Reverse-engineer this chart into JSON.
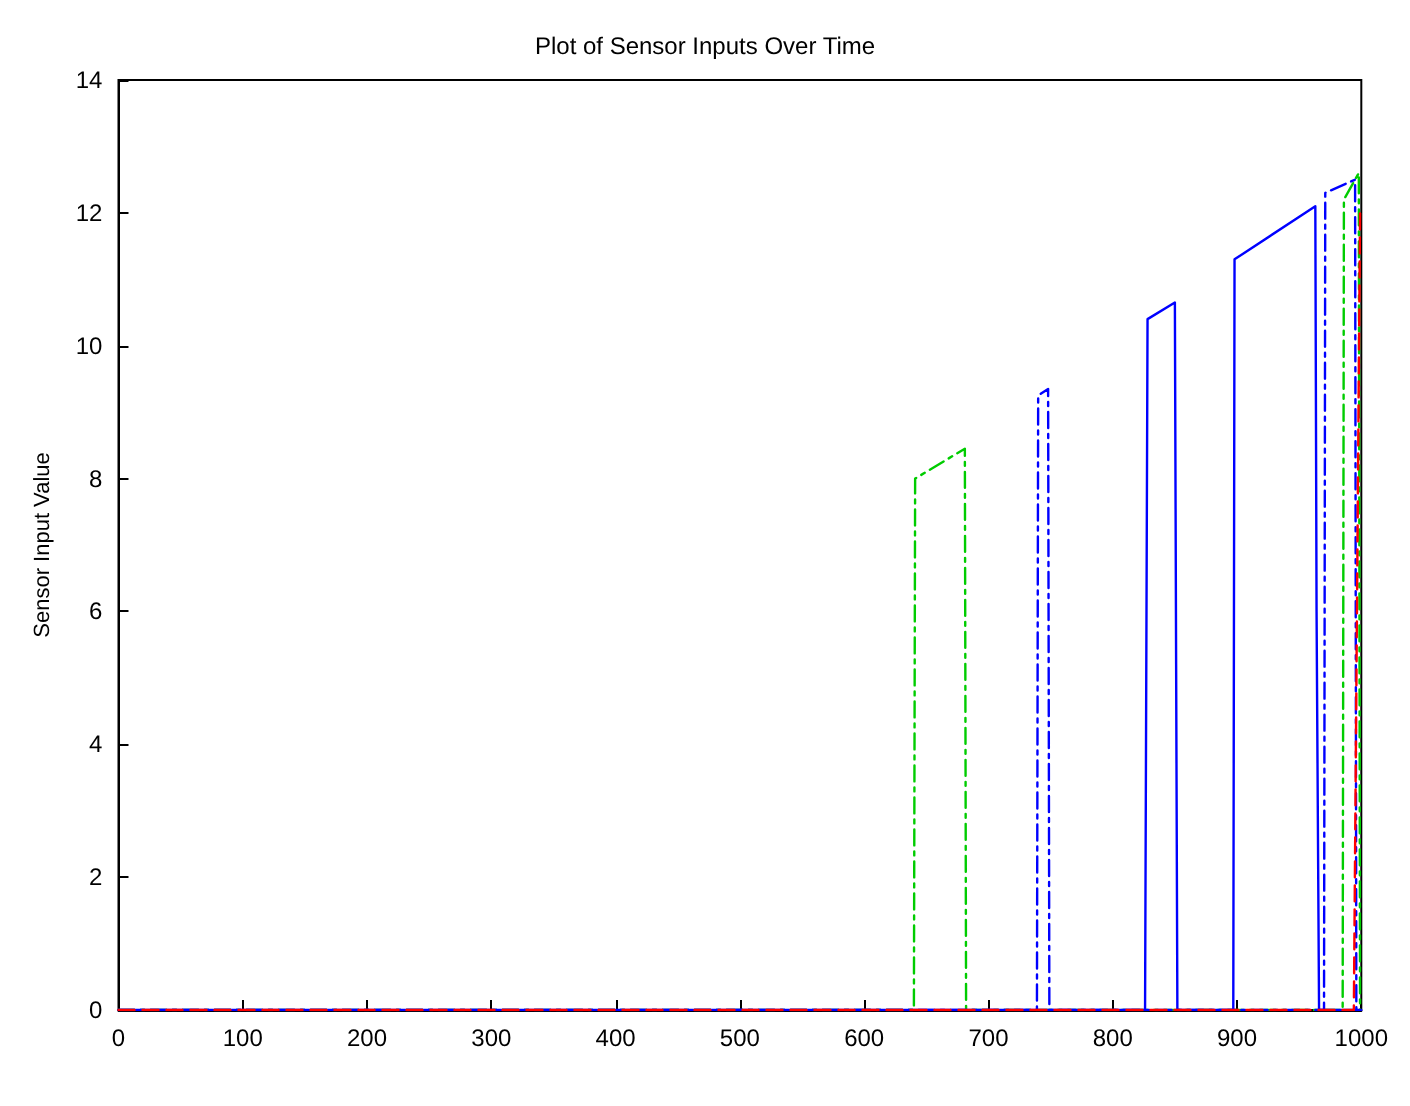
{
  "chart_data": {
    "type": "line",
    "title": "Plot of Sensor Inputs Over Time",
    "ylabel": "Sensor Input Value",
    "xlim": [
      0,
      1000
    ],
    "xticks": [
      0,
      100,
      200,
      300,
      400,
      500,
      600,
      700,
      800,
      900,
      1000
    ],
    "ylim": [
      0,
      14
    ],
    "yticks": [
      0,
      2,
      4,
      6,
      8,
      10,
      12,
      14
    ],
    "marker": "none",
    "series": [
      {
        "color": "#00cc00",
        "line_style": "dashdot",
        "x": [
          0,
          640,
          641,
          681,
          682,
          985,
          986,
          998,
          999,
          1000
        ],
        "values": [
          0,
          0,
          8.0,
          8.45,
          0,
          0,
          12.2,
          12.6,
          0,
          0
        ]
      },
      {
        "color": "#0000ff",
        "line_style": "dashdot",
        "x": [
          0,
          739,
          740,
          748,
          749,
          970,
          971,
          995,
          996,
          1000
        ],
        "values": [
          0,
          0,
          9.25,
          9.35,
          0,
          0,
          12.3,
          12.5,
          0,
          0
        ]
      },
      {
        "color": "#0000ff",
        "line_style": "solid",
        "x": [
          0,
          826,
          827,
          828,
          850,
          851,
          852,
          897,
          898,
          963,
          964,
          966,
          1000
        ],
        "values": [
          0,
          0,
          5.2,
          10.4,
          10.65,
          5.2,
          0,
          0,
          11.3,
          12.1,
          6,
          0,
          0
        ]
      },
      {
        "color": "#ff0000",
        "line_style": "dashed",
        "x": [
          0,
          994,
          995,
          999,
          1000
        ],
        "values": [
          0,
          0,
          0,
          12,
          12
        ]
      }
    ]
  }
}
